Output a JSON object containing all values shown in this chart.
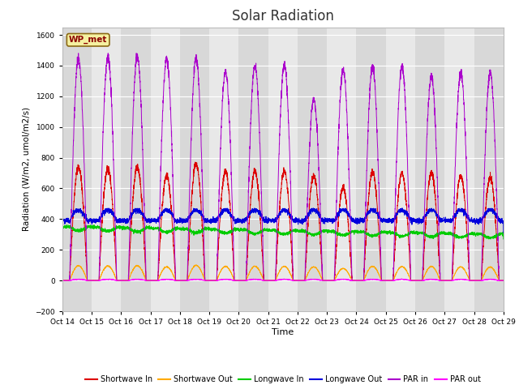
{
  "title": "Solar Radiation",
  "ylabel": "Radiation (W/m2, umol/m2/s)",
  "xlabel": "Time",
  "ylim": [
    -200,
    1650
  ],
  "yticks": [
    -200,
    0,
    200,
    400,
    600,
    800,
    1000,
    1200,
    1400,
    1600
  ],
  "x_tick_labels": [
    "Oct 14",
    "Oct 15",
    "Oct 16",
    "Oct 17",
    "Oct 18",
    "Oct 19",
    "Oct 20",
    "Oct 21",
    "Oct 22",
    "Oct 23",
    "Oct 24",
    "Oct 25",
    "Oct 26",
    "Oct 27",
    "Oct 28",
    "Oct 29"
  ],
  "colors": {
    "shortwave_in": "#dd0000",
    "shortwave_out": "#ffaa00",
    "longwave_in": "#00cc00",
    "longwave_out": "#0000dd",
    "par_in": "#aa00cc",
    "par_out": "#ff00ff"
  },
  "legend_label": "WP_met",
  "fig_bg": "#ffffff",
  "plot_bg": "#f0f0f0",
  "band_light": "#e8e8e8",
  "band_dark": "#d8d8d8",
  "grid_color": "#ffffff",
  "n_days": 15,
  "points_per_day": 288,
  "title_fontsize": 12
}
